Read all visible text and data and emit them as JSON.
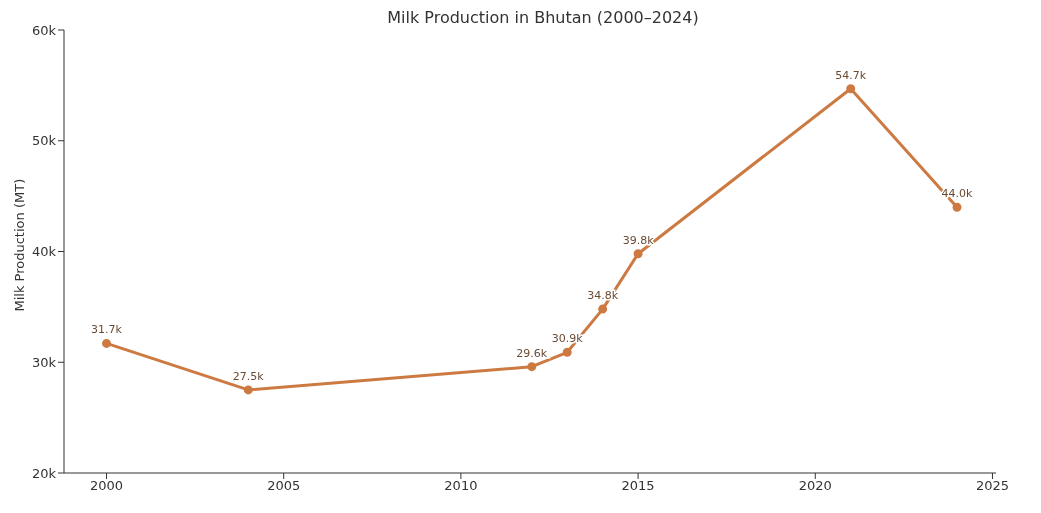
{
  "chart_data": {
    "type": "line",
    "title": "Milk Production in Bhutan (2000–2024)",
    "ylabel": "Milk Production (MT)",
    "x": [
      2000,
      2004,
      2012,
      2013,
      2014,
      2015,
      2021,
      2024
    ],
    "series": [
      {
        "color": "#cd7a42",
        "values": [
          31700,
          27500,
          29600,
          30900,
          34800,
          39800,
          54700,
          44000
        ],
        "value_labels": [
          "31.7k",
          "27.5k",
          "29.6k",
          "30.9k",
          "34.8k",
          "39.8k",
          "54.7k",
          "44.0k"
        ]
      }
    ],
    "xlim": [
      1998.8,
      2025.1
    ],
    "xticks": [
      2000,
      2005,
      2010,
      2015,
      2020,
      2025
    ],
    "ylim": [
      20000,
      60000
    ],
    "yticks": [
      {
        "value": 20000,
        "label": "20k"
      },
      {
        "value": 30000,
        "label": "30k"
      },
      {
        "value": 40000,
        "label": "40k"
      },
      {
        "value": 50000,
        "label": "50k"
      },
      {
        "value": 60000,
        "label": "60k"
      }
    ],
    "marker": "circle",
    "line_style": "solid"
  }
}
